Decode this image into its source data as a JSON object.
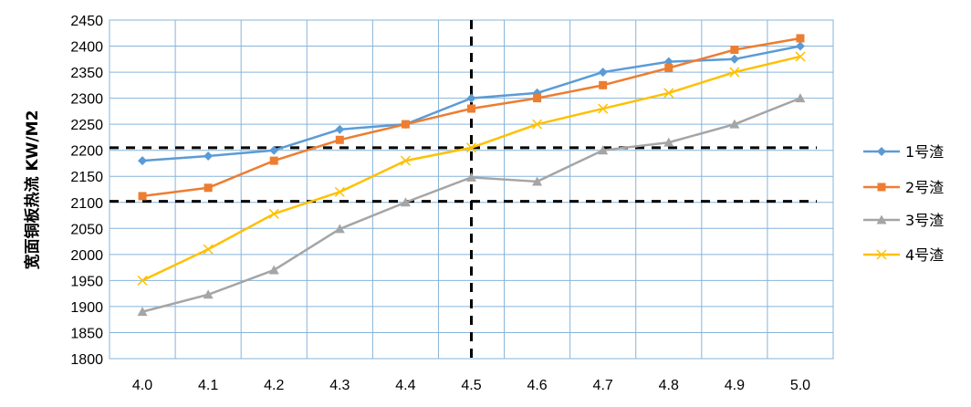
{
  "chart_data": {
    "type": "line",
    "title": "",
    "xlabel": "",
    "ylabel": "宽面铜板热流 KW/M2",
    "x": [
      "4.0",
      "4.1",
      "4.2",
      "4.3",
      "4.4",
      "4.5",
      "4.6",
      "4.7",
      "4.8",
      "4.9",
      "5.0"
    ],
    "ylim": [
      1800,
      2450
    ],
    "yticks": [
      1800,
      1850,
      1900,
      1950,
      2000,
      2050,
      2100,
      2150,
      2200,
      2250,
      2300,
      2350,
      2400,
      2450
    ],
    "grid": "vertical and horizontal",
    "legend": "right",
    "series": [
      {
        "name": "1号渣",
        "color": "#5B9BD5",
        "marker": "diamond",
        "values": [
          2180,
          2189,
          2200,
          2240,
          2250,
          2300,
          2310,
          2350,
          2370,
          2375,
          2400
        ]
      },
      {
        "name": "2号渣",
        "color": "#ED7D31",
        "marker": "square",
        "values": [
          2112,
          2128,
          2180,
          2220,
          2250,
          2280,
          2300,
          2325,
          2358,
          2393,
          2415
        ]
      },
      {
        "name": "3号渣",
        "color": "#A5A5A5",
        "marker": "triangle",
        "values": [
          1890,
          1923,
          1970,
          2049,
          2100,
          2148,
          2140,
          2200,
          2215,
          2250,
          2300
        ]
      },
      {
        "name": "4号渣",
        "color": "#FFC000",
        "marker": "x",
        "values": [
          1950,
          2010,
          2078,
          2120,
          2180,
          2205,
          2250,
          2280,
          2310,
          2350,
          2380
        ]
      }
    ],
    "reference_lines": [
      {
        "orientation": "vertical",
        "x": "4.5"
      },
      {
        "orientation": "horizontal",
        "y": 2205
      },
      {
        "orientation": "horizontal",
        "y": 2102
      }
    ]
  }
}
